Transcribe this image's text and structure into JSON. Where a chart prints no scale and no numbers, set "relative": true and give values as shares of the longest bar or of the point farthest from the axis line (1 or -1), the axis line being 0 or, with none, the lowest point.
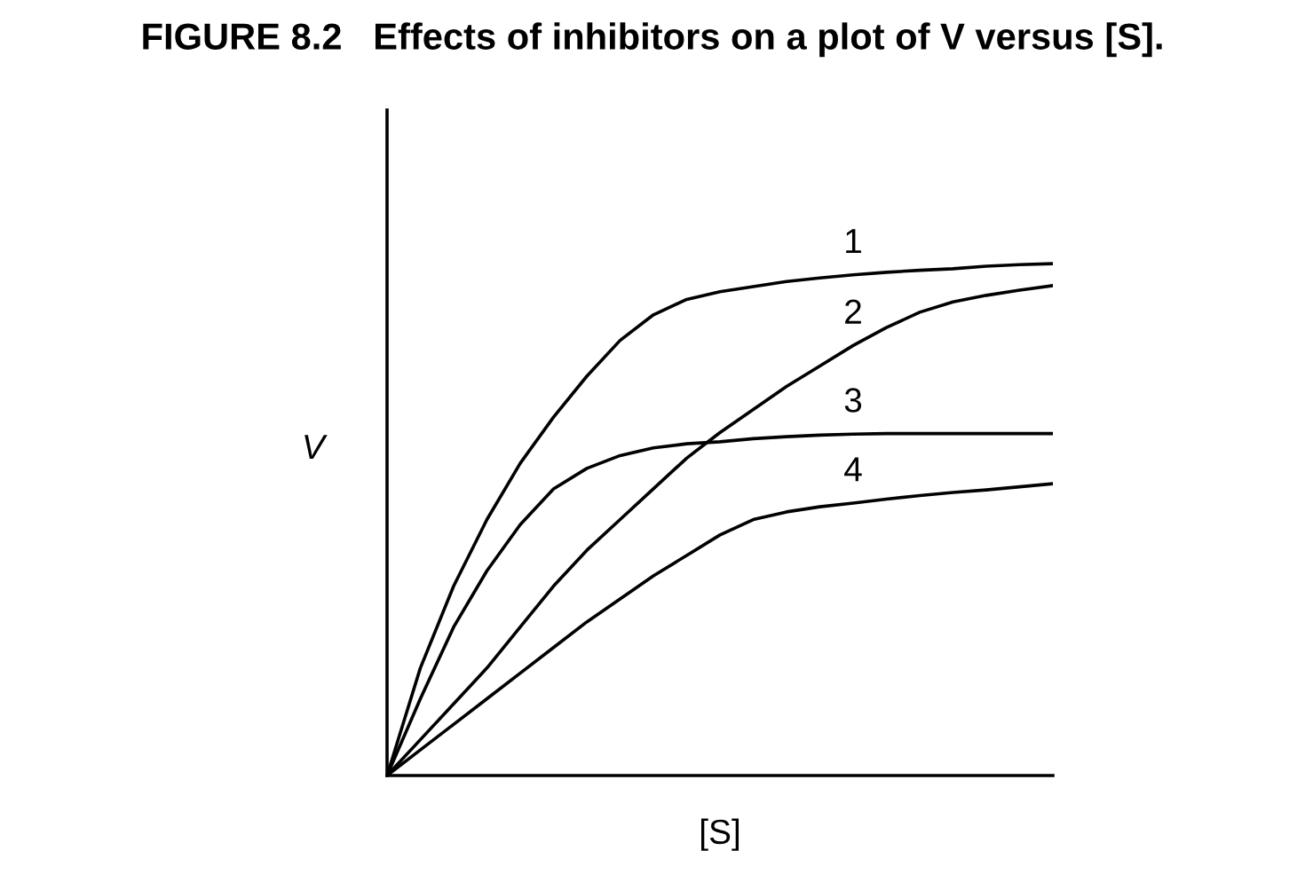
{
  "chart_data": {
    "type": "line",
    "title": "FIGURE 8.2   Effects of inhibitors on a plot of V versus [S].",
    "xlabel": "[S]",
    "ylabel": "V",
    "relative": true,
    "legend": false,
    "grid": false,
    "marker": "none",
    "line_style": "solid",
    "categories": [
      null,
      null,
      null,
      null,
      null,
      null,
      null,
      null,
      null,
      null,
      null,
      null,
      null,
      null,
      null,
      null,
      null,
      null,
      null,
      null,
      null
    ],
    "series": [
      {
        "name": "1",
        "color": "#000000",
        "values": [
          0,
          0.21,
          0.37,
          0.5,
          0.61,
          0.7,
          0.78,
          0.85,
          0.9,
          0.93,
          0.945,
          0.955,
          0.965,
          0.972,
          0.978,
          0.983,
          0.987,
          0.99,
          0.995,
          0.998,
          1
        ]
      },
      {
        "name": "2",
        "color": "#000000",
        "values": [
          0,
          0.07,
          0.14,
          0.21,
          0.29,
          0.37,
          0.44,
          0.5,
          0.56,
          0.62,
          0.67,
          0.715,
          0.76,
          0.8,
          0.84,
          0.875,
          0.905,
          0.925,
          0.938,
          0.948,
          0.957
        ]
      },
      {
        "name": "3",
        "color": "#000000",
        "values": [
          0,
          0.15,
          0.29,
          0.4,
          0.49,
          0.56,
          0.6,
          0.625,
          0.64,
          0.648,
          0.652,
          0.658,
          0.662,
          0.665,
          0.667,
          0.668,
          0.668,
          0.668,
          0.668,
          0.668,
          0.668
        ]
      },
      {
        "name": "4",
        "color": "#000000",
        "values": [
          0,
          0.05,
          0.1,
          0.15,
          0.2,
          0.25,
          0.3,
          0.345,
          0.39,
          0.43,
          0.47,
          0.5,
          0.515,
          0.525,
          0.532,
          0.54,
          0.547,
          0.553,
          0.558,
          0.564,
          0.57
        ]
      }
    ]
  }
}
